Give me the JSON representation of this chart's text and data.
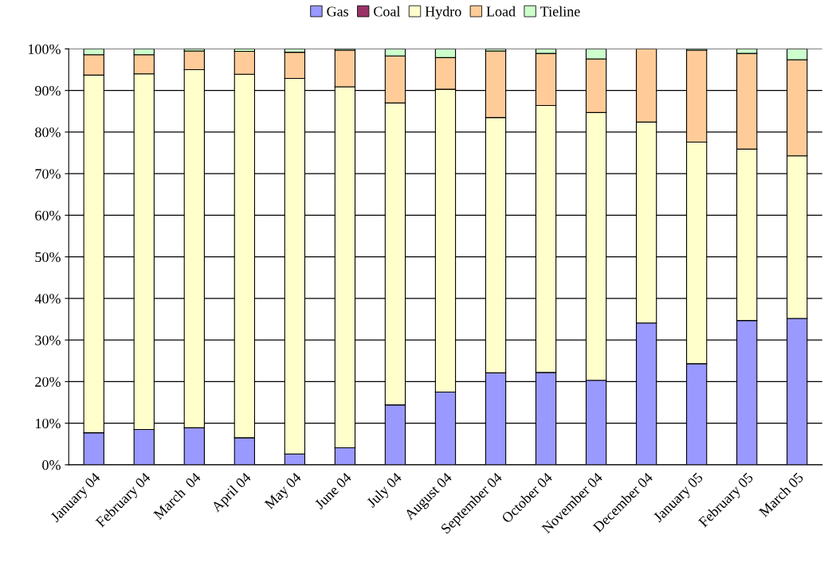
{
  "chart_data": {
    "type": "bar",
    "stacked": true,
    "categories": [
      "January 04",
      "February 04",
      "March  04",
      "April 04",
      "May 04",
      "June 04",
      "July 04",
      "August 04",
      "September 04",
      "October 04",
      "November 04",
      "December 04",
      "January 05",
      "February 05",
      "March 05"
    ],
    "series": [
      {
        "name": "Gas",
        "color": "#9999ff",
        "values": [
          7.7,
          8.5,
          8.9,
          6.5,
          2.6,
          4.1,
          14.4,
          17.5,
          22.1,
          22.2,
          20.3,
          34.1,
          24.3,
          34.7,
          35.2
        ]
      },
      {
        "name": "Coal",
        "color": "#993366",
        "values": [
          0,
          0,
          0,
          0,
          0,
          0,
          0,
          0,
          0,
          0,
          0,
          0,
          0,
          0,
          0
        ]
      },
      {
        "name": "Hydro",
        "color": "#ffffcc",
        "values": [
          86.0,
          85.5,
          86.1,
          87.4,
          90.3,
          86.8,
          72.6,
          72.8,
          61.4,
          64.2,
          64.4,
          48.3,
          53.3,
          41.2,
          39.1
        ]
      },
      {
        "name": "Load",
        "color": "#ffcc99",
        "values": [
          4.9,
          4.6,
          4.5,
          5.5,
          6.3,
          8.8,
          11.3,
          7.6,
          16.0,
          12.5,
          12.9,
          17.6,
          22.1,
          23.0,
          23.1
        ]
      },
      {
        "name": "Tieline",
        "color": "#ccffcc",
        "values": [
          1.4,
          1.4,
          0.5,
          0.6,
          0.8,
          0.3,
          1.7,
          2.1,
          0.5,
          1.1,
          2.4,
          0,
          0.3,
          1.1,
          2.6
        ]
      }
    ],
    "ylim": [
      0,
      100
    ],
    "yticks": [
      {
        "value": 0,
        "label": "0%"
      },
      {
        "value": 10,
        "label": "10%"
      },
      {
        "value": 20,
        "label": "20%"
      },
      {
        "value": 30,
        "label": "30%"
      },
      {
        "value": 40,
        "label": "40%"
      },
      {
        "value": 50,
        "label": "50%"
      },
      {
        "value": 60,
        "label": "60%"
      },
      {
        "value": 70,
        "label": "70%"
      },
      {
        "value": 80,
        "label": "80%"
      },
      {
        "value": 90,
        "label": "90%"
      },
      {
        "value": 100,
        "label": "100%"
      }
    ],
    "grid": "y",
    "legend": "top"
  }
}
